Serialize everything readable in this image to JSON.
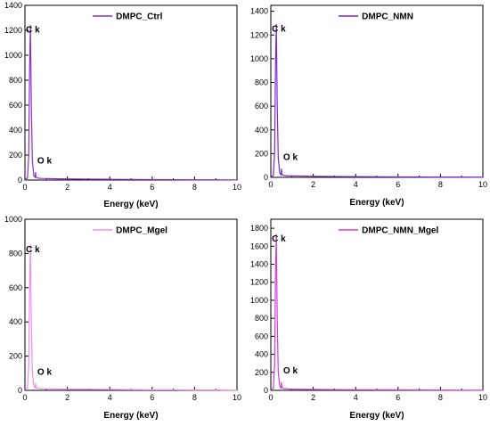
{
  "chart_data": [
    {
      "type": "line",
      "series": [
        {
          "name": "DMPC_Ctrl",
          "color": "#8B2FC9",
          "x": [
            0,
            0.12,
            0.18,
            0.22,
            0.26,
            0.3,
            0.35,
            0.42,
            0.48,
            0.5,
            0.52,
            0.56,
            0.62,
            0.7,
            0.8,
            1.0,
            1.5,
            2,
            3,
            4,
            5,
            6,
            7,
            8,
            9,
            10
          ],
          "y": [
            8,
            15,
            200,
            900,
            1240,
            600,
            150,
            35,
            20,
            60,
            25,
            18,
            15,
            14,
            13,
            12,
            10,
            9,
            7,
            6,
            5,
            4,
            3,
            2,
            2,
            1
          ]
        }
      ],
      "xlabel": "Energy (keV)",
      "ylabel": "",
      "xlim": [
        0,
        10
      ],
      "ylim": [
        0,
        1400
      ],
      "xticks": [
        "0",
        "2",
        "4",
        "6",
        "8",
        "10"
      ],
      "yticks": [
        "0",
        "200",
        "400",
        "600",
        "800",
        "1000",
        "1200",
        "1400"
      ],
      "annotations": [
        {
          "text": "C k",
          "x": 0.3,
          "y": 1240
        },
        {
          "text": "O k",
          "x": 0.5,
          "y": 60
        }
      ],
      "legend": "top-right"
    },
    {
      "type": "line",
      "series": [
        {
          "name": "DMPC_NMN",
          "color": "#7B28D6",
          "x": [
            0,
            0.12,
            0.18,
            0.22,
            0.26,
            0.3,
            0.35,
            0.42,
            0.48,
            0.5,
            0.52,
            0.56,
            0.62,
            0.7,
            0.8,
            1.0,
            1.5,
            2,
            3,
            4,
            5,
            6,
            7,
            8,
            9,
            10
          ],
          "y": [
            8,
            15,
            220,
            950,
            1290,
            620,
            160,
            35,
            20,
            70,
            28,
            20,
            16,
            14,
            13,
            12,
            11,
            9,
            7,
            6,
            5,
            4,
            3,
            2,
            2,
            1
          ]
        }
      ],
      "xlabel": "Energy (keV)",
      "ylabel": "",
      "xlim": [
        0,
        10
      ],
      "ylim": [
        0,
        1450
      ],
      "xticks": [
        "0",
        "2",
        "4",
        "6",
        "8",
        "10"
      ],
      "yticks": [
        "0",
        "200",
        "400",
        "600",
        "800",
        "1000",
        "1200",
        "1400"
      ],
      "annotations": [
        {
          "text": "C k",
          "x": 0.3,
          "y": 1290
        },
        {
          "text": "O k",
          "x": 0.5,
          "y": 70
        }
      ],
      "legend": "top-right"
    },
    {
      "type": "line",
      "series": [
        {
          "name": "DMPC_Mgel",
          "color": "#F28BF0",
          "x": [
            0,
            0.12,
            0.18,
            0.22,
            0.26,
            0.3,
            0.35,
            0.42,
            0.48,
            0.5,
            0.52,
            0.56,
            0.62,
            0.7,
            0.8,
            1.0,
            1.5,
            2,
            3,
            4,
            5,
            6,
            7,
            8,
            9,
            10
          ],
          "y": [
            6,
            12,
            150,
            600,
            850,
            400,
            100,
            25,
            15,
            40,
            18,
            14,
            12,
            11,
            10,
            9,
            8,
            7,
            6,
            5,
            4,
            3,
            3,
            2,
            2,
            1
          ]
        }
      ],
      "xlabel": "Energy (keV)",
      "ylabel": "",
      "xlim": [
        0,
        10
      ],
      "ylim": [
        0,
        1000
      ],
      "xticks": [
        "0",
        "2",
        "4",
        "6",
        "8",
        "10"
      ],
      "yticks": [
        "0",
        "200",
        "400",
        "600",
        "800",
        "1000"
      ],
      "annotations": [
        {
          "text": "C k",
          "x": 0.3,
          "y": 850
        },
        {
          "text": "O k",
          "x": 0.5,
          "y": 40
        }
      ],
      "legend": "top-right"
    },
    {
      "type": "line",
      "series": [
        {
          "name": "DMPC_NMN_Mgel",
          "color": "#D63AD6",
          "x": [
            0,
            0.12,
            0.18,
            0.22,
            0.26,
            0.3,
            0.35,
            0.42,
            0.48,
            0.5,
            0.52,
            0.56,
            0.62,
            0.7,
            0.8,
            1.0,
            1.5,
            2,
            3,
            4,
            5,
            6,
            7,
            8,
            9,
            10
          ],
          "y": [
            10,
            20,
            300,
            1300,
            1730,
            800,
            200,
            45,
            25,
            90,
            35,
            25,
            20,
            18,
            16,
            14,
            12,
            10,
            8,
            7,
            6,
            5,
            4,
            3,
            2,
            1
          ]
        }
      ],
      "xlabel": "Energy (keV)",
      "ylabel": "",
      "xlim": [
        0,
        10
      ],
      "ylim": [
        0,
        1900
      ],
      "xticks": [
        "0",
        "2",
        "4",
        "6",
        "8",
        "10"
      ],
      "yticks": [
        "0",
        "200",
        "400",
        "600",
        "800",
        "1000",
        "1200",
        "1400",
        "1600",
        "1800"
      ],
      "annotations": [
        {
          "text": "C k",
          "x": 0.3,
          "y": 1730
        },
        {
          "text": "O k",
          "x": 0.5,
          "y": 90
        }
      ],
      "legend": "top-right"
    }
  ]
}
